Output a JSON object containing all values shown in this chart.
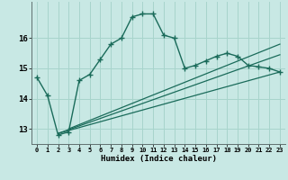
{
  "title": "",
  "xlabel": "Humidex (Indice chaleur)",
  "bg_color": "#c8e8e4",
  "line_color": "#1a6b5a",
  "grid_color": "#a8d4cc",
  "xlim": [
    -0.5,
    23.5
  ],
  "ylim": [
    12.5,
    17.2
  ],
  "yticks": [
    13,
    14,
    15,
    16
  ],
  "xticks": [
    0,
    1,
    2,
    3,
    4,
    5,
    6,
    7,
    8,
    9,
    10,
    11,
    12,
    13,
    14,
    15,
    16,
    17,
    18,
    19,
    20,
    21,
    22,
    23
  ],
  "xtick_labels": [
    "0",
    "1",
    "2",
    "3",
    "4",
    "5",
    "6",
    "7",
    "8",
    "9",
    "10",
    "11",
    "12",
    "13",
    "14",
    "15",
    "16",
    "17",
    "18",
    "19",
    "20",
    "21",
    "22",
    "23"
  ],
  "main_x": [
    0,
    1,
    2,
    3,
    4,
    5,
    6,
    7,
    8,
    9,
    10,
    11,
    12,
    13,
    14,
    15,
    16,
    17,
    18,
    19,
    20,
    21,
    22,
    23
  ],
  "main_y": [
    14.7,
    14.1,
    12.8,
    12.9,
    14.6,
    14.8,
    15.3,
    15.8,
    16.0,
    16.7,
    16.8,
    16.8,
    16.1,
    16.0,
    15.0,
    15.1,
    15.25,
    15.4,
    15.5,
    15.4,
    15.1,
    15.05,
    15.0,
    14.88
  ],
  "reg_line1_x": [
    2,
    23
  ],
  "reg_line1_y": [
    12.85,
    15.45
  ],
  "reg_line2_x": [
    2,
    23
  ],
  "reg_line2_y": [
    12.85,
    14.88
  ],
  "reg_line3_x": [
    3,
    23
  ],
  "reg_line3_y": [
    13.0,
    15.8
  ]
}
